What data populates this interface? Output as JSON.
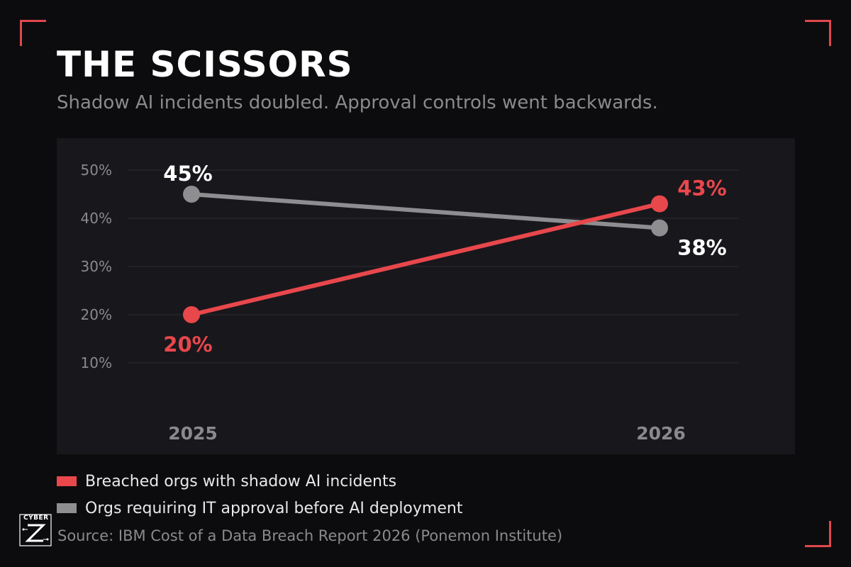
{
  "header": {
    "title": "THE SCISSORS",
    "subtitle": "Shadow AI incidents doubled. Approval controls went backwards."
  },
  "chart_data": {
    "type": "line",
    "x": [
      "2025",
      "2026"
    ],
    "y_ticks": [
      "10%",
      "20%",
      "30%",
      "40%",
      "50%"
    ],
    "ylim": [
      10,
      50
    ],
    "grid": true,
    "legend_position": "bottom-left",
    "series": [
      {
        "name": "Breached orgs with shadow AI incidents",
        "values": [
          20,
          43
        ],
        "labels": [
          "20%",
          "43%"
        ],
        "color": "#e8474c"
      },
      {
        "name": "Orgs requiring IT approval before AI deployment",
        "values": [
          45,
          38
        ],
        "labels": [
          "45%",
          "38%"
        ],
        "color": "#8e8e90"
      }
    ]
  },
  "legend": {
    "items": [
      {
        "label": "Breached orgs with shadow AI incidents",
        "color": "#e8474c"
      },
      {
        "label": "Orgs requiring IT approval before AI deployment",
        "color": "#8e8e90"
      }
    ]
  },
  "footer": {
    "logo_text": "CYBER",
    "source": "Source: IBM Cost of a Data Breach Report 2026 (Ponemon Institute)"
  }
}
